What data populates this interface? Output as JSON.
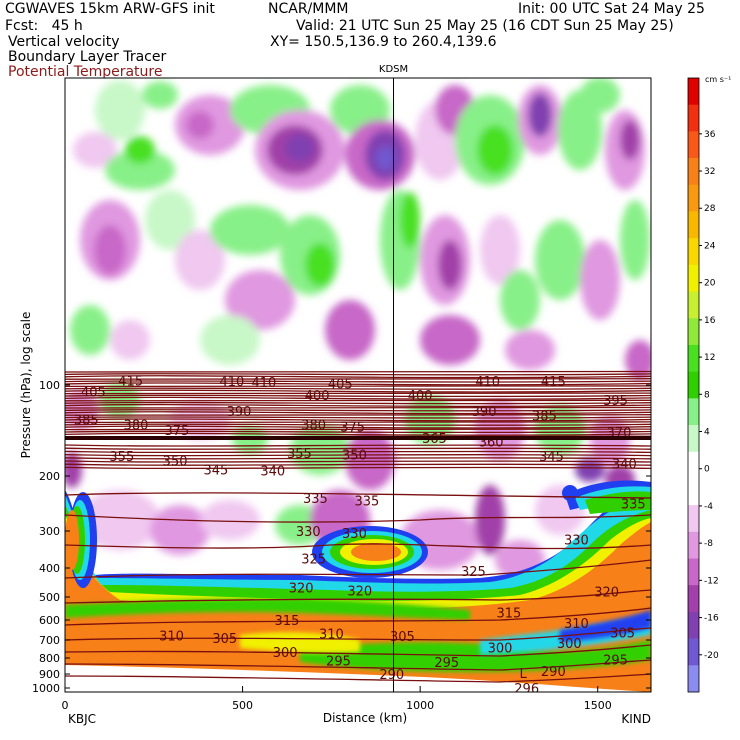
{
  "header": {
    "model": "CGWAVES 15km ARW-GFS init",
    "org": "NCAR/MMM",
    "init": "Init: 00 UTC Sat 24 May 25",
    "fcst": "Fcst:   45 h",
    "valid": "Valid: 21 UTC Sun 25 May 25 (16 CDT Sun 25 May 25)",
    "field1": "Vertical velocity",
    "field2": "Boundary Layer Tracer",
    "field3": "Potential Temperature",
    "xy": "XY= 150.5,136.9 to 260.4,139.6"
  },
  "colors": {
    "theta": "#7a0f0f",
    "brown_label": "#8b1a1a"
  },
  "chart_data": {
    "type": "heatmap",
    "title": "KDSM",
    "xlabel": "Distance (km)",
    "ylabel": "Pressure (hPa), log scale",
    "xlim": [
      0,
      1650
    ],
    "ylim": [
      1000,
      10
    ],
    "x_ticks": [
      "0",
      "500",
      "1000",
      "1500"
    ],
    "y_ticks": [
      "100",
      "200",
      "300",
      "400",
      "500",
      "600",
      "700",
      "800",
      "900",
      "1000"
    ],
    "end_labels": {
      "left": "KBJC",
      "right": "KIND"
    },
    "marker_station": "KDSM",
    "marker_x_km": 925,
    "colorbar": {
      "unit": "cm s⁻¹",
      "labels": [
        "36",
        "32",
        "28",
        "24",
        "20",
        "16",
        "12",
        "8",
        "4",
        "0",
        "-4",
        "-8",
        "-12",
        "-16",
        "-20"
      ],
      "colors": [
        "#e00000",
        "#f03010",
        "#f85818",
        "#f88018",
        "#f89a10",
        "#f8b800",
        "#f8d800",
        "#f0f000",
        "#c8f030",
        "#90e838",
        "#48e020",
        "#30d000",
        "#88f088",
        "#c8f8c8",
        "#ffffff",
        "#ffffff",
        "#f0c8f0",
        "#e098e0",
        "#c868c8",
        "#a040a8",
        "#8040b0",
        "#7058d0",
        "#8c8cf0"
      ]
    },
    "theta_labels": [
      {
        "t": "415",
        "x": 185,
        "p": 88
      },
      {
        "t": "410",
        "x": 470,
        "p": 90
      },
      {
        "t": "415",
        "x": 1375,
        "p": 90
      },
      {
        "t": "410",
        "x": 1190,
        "p": 90
      },
      {
        "t": "405",
        "x": 80,
        "p": 105
      },
      {
        "t": "405",
        "x": 775,
        "p": 96
      },
      {
        "t": "410",
        "x": 560,
        "p": 92
      },
      {
        "t": "400",
        "x": 710,
        "p": 108
      },
      {
        "t": "400",
        "x": 1000,
        "p": 108
      },
      {
        "t": "395",
        "x": 1550,
        "p": 112
      },
      {
        "t": "390",
        "x": 490,
        "p": 122
      },
      {
        "t": "390",
        "x": 1180,
        "p": 122
      },
      {
        "t": "385",
        "x": 60,
        "p": 130
      },
      {
        "t": "385",
        "x": 1350,
        "p": 126
      },
      {
        "t": "380",
        "x": 200,
        "p": 135
      },
      {
        "t": "380",
        "x": 700,
        "p": 135
      },
      {
        "t": "375",
        "x": 315,
        "p": 141
      },
      {
        "t": "375",
        "x": 810,
        "p": 137
      },
      {
        "t": "370",
        "x": 1560,
        "p": 143
      },
      {
        "t": "365",
        "x": 1040,
        "p": 150
      },
      {
        "t": "360",
        "x": 1200,
        "p": 154
      },
      {
        "t": "355",
        "x": 160,
        "p": 172
      },
      {
        "t": "355",
        "x": 660,
        "p": 168
      },
      {
        "t": "350",
        "x": 310,
        "p": 178
      },
      {
        "t": "350",
        "x": 815,
        "p": 170
      },
      {
        "t": "345",
        "x": 1370,
        "p": 172
      },
      {
        "t": "345",
        "x": 425,
        "p": 190
      },
      {
        "t": "340",
        "x": 585,
        "p": 192
      },
      {
        "t": "340",
        "x": 1575,
        "p": 182
      },
      {
        "t": "335",
        "x": 705,
        "p": 235
      },
      {
        "t": "335",
        "x": 850,
        "p": 240
      },
      {
        "t": "335",
        "x": 1600,
        "p": 245
      },
      {
        "t": "330",
        "x": 685,
        "p": 300
      },
      {
        "t": "330",
        "x": 815,
        "p": 305
      },
      {
        "t": "330",
        "x": 1440,
        "p": 320
      },
      {
        "t": "325",
        "x": 700,
        "p": 372
      },
      {
        "t": "325",
        "x": 1150,
        "p": 410
      },
      {
        "t": "320",
        "x": 665,
        "p": 465
      },
      {
        "t": "320",
        "x": 830,
        "p": 475
      },
      {
        "t": "320",
        "x": 1525,
        "p": 480
      },
      {
        "t": "315",
        "x": 625,
        "p": 600
      },
      {
        "t": "315",
        "x": 1250,
        "p": 565
      },
      {
        "t": "310",
        "x": 1440,
        "p": 615
      },
      {
        "t": "310",
        "x": 300,
        "p": 675
      },
      {
        "t": "310",
        "x": 750,
        "p": 665
      },
      {
        "t": "305",
        "x": 450,
        "p": 690
      },
      {
        "t": "305",
        "x": 950,
        "p": 680
      },
      {
        "t": "305",
        "x": 1570,
        "p": 660
      },
      {
        "t": "300",
        "x": 620,
        "p": 765
      },
      {
        "t": "300",
        "x": 1225,
        "p": 740
      },
      {
        "t": "300",
        "x": 1420,
        "p": 715
      },
      {
        "t": "295",
        "x": 770,
        "p": 815
      },
      {
        "t": "295",
        "x": 1075,
        "p": 825
      },
      {
        "t": "295",
        "x": 1550,
        "p": 810
      },
      {
        "t": "290",
        "x": 920,
        "p": 900
      },
      {
        "t": "290",
        "x": 1375,
        "p": 880
      },
      {
        "t": "296",
        "x": 1300,
        "p": 1000
      }
    ],
    "annotations": [
      {
        "t": "L",
        "x": 1290,
        "p": 895
      }
    ]
  }
}
